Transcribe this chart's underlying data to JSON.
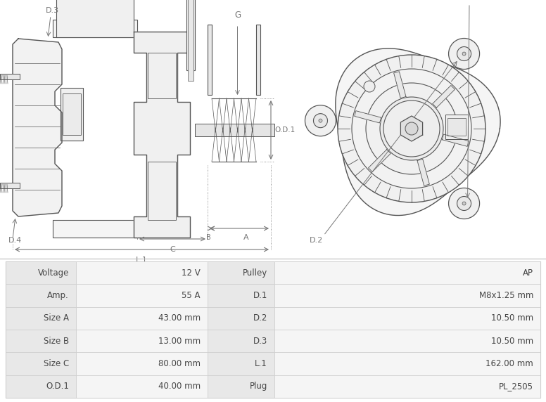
{
  "table_data": [
    [
      "Voltage",
      "12 V",
      "Pulley",
      "AP"
    ],
    [
      "Amp.",
      "55 A",
      "D.1",
      "M8x1.25 mm"
    ],
    [
      "Size A",
      "43.00 mm",
      "D.2",
      "10.50 mm"
    ],
    [
      "Size B",
      "13.00 mm",
      "D.3",
      "10.50 mm"
    ],
    [
      "Size C",
      "80.00 mm",
      "L.1",
      "162.00 mm"
    ],
    [
      "O.D.1",
      "40.00 mm",
      "Plug",
      "PL_2505"
    ]
  ],
  "bg_color_label": "#e8e8e8",
  "bg_color_value": "#f5f5f5",
  "bg_color_white": "#ffffff",
  "line_color": "#cccccc",
  "text_color": "#444444",
  "border_color": "#bbbbbb",
  "draw_color": "#555555",
  "dim_color": "#777777"
}
